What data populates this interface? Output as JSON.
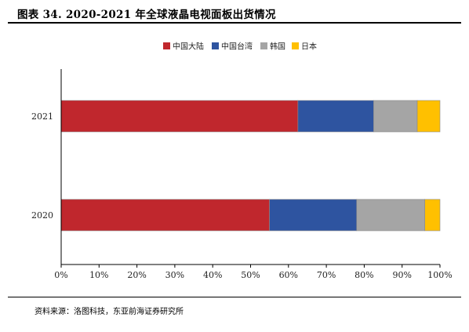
{
  "header": {
    "title": "图表 34. 2020-2021 年全球液晶电视面板出货情况"
  },
  "footer": {
    "source": "资料来源：洛图科技，东亚前海证券研究所"
  },
  "chart_data": {
    "type": "bar",
    "orientation": "horizontal",
    "stacked": true,
    "categories": [
      "2021",
      "2020"
    ],
    "series": [
      {
        "name": "中国大陆",
        "color": "#C0272D",
        "values": [
          62.5,
          55.0
        ]
      },
      {
        "name": "中国台湾",
        "color": "#2E54A0",
        "values": [
          20.0,
          23.0
        ]
      },
      {
        "name": "韩国",
        "color": "#A5A5A5",
        "values": [
          11.5,
          18.0
        ]
      },
      {
        "name": "日本",
        "color": "#FFC000",
        "values": [
          6.0,
          4.0
        ]
      }
    ],
    "xlim": [
      0,
      100
    ],
    "xticks": [
      "0%",
      "10%",
      "20%",
      "30%",
      "40%",
      "50%",
      "60%",
      "70%",
      "80%",
      "90%",
      "100%"
    ],
    "legend_position": "top",
    "grid": false
  }
}
